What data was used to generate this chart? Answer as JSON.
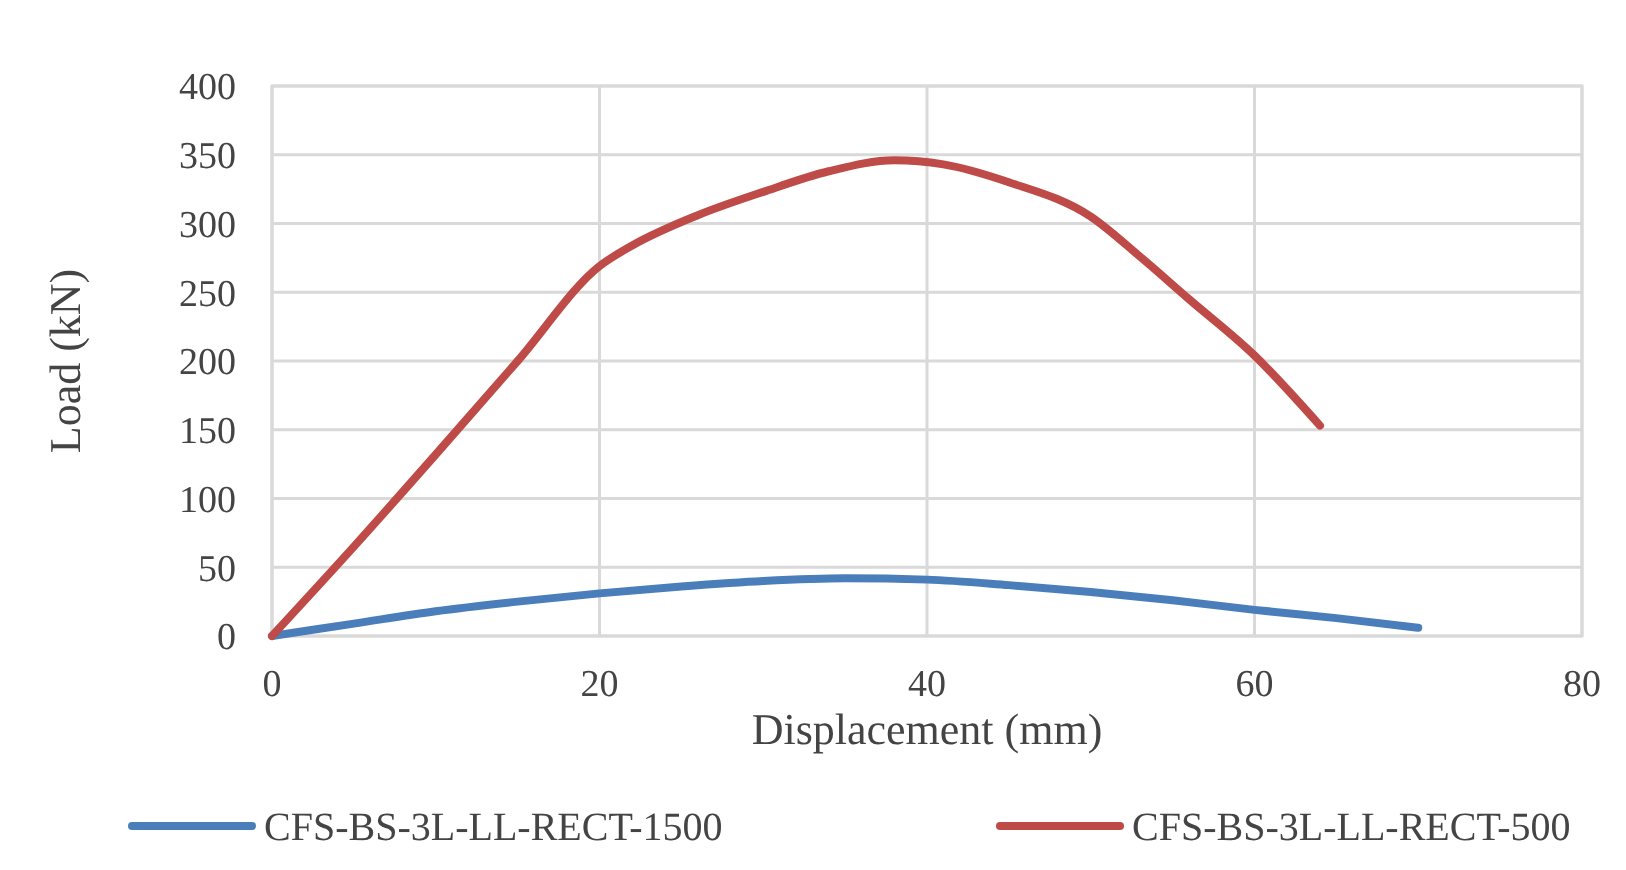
{
  "chart_data": {
    "type": "line",
    "xlabel": "Displacement (mm)",
    "ylabel": "Load (kN)",
    "xlim": [
      0,
      80
    ],
    "xticks": [
      0,
      20,
      40,
      60,
      80
    ],
    "ylim": [
      0,
      400
    ],
    "yticks": [
      0,
      50,
      100,
      150,
      200,
      250,
      300,
      350,
      400
    ],
    "grid": true,
    "legend": "bottom",
    "marker": "none",
    "line_style": "solid",
    "series": [
      {
        "name": "CFS-BS-3L-LL-RECT-1500",
        "color": "#4a7ebb",
        "x": [
          0,
          5,
          10,
          15,
          20,
          25,
          30,
          35,
          40,
          45,
          50,
          55,
          60,
          65,
          70
        ],
        "values": [
          0,
          9,
          18,
          25,
          31,
          36,
          40,
          42,
          41,
          37,
          32,
          26,
          19,
          13,
          6
        ]
      },
      {
        "name": "CFS-BS-3L-LL-RECT-500",
        "color": "#be4b48",
        "x": [
          0,
          5,
          10,
          15,
          20,
          22,
          26,
          30,
          34,
          38,
          41,
          45,
          50,
          53,
          56,
          60,
          64
        ],
        "values": [
          0,
          65,
          132,
          200,
          269,
          284,
          306,
          323,
          338,
          346,
          343,
          330,
          305,
          276,
          245,
          204,
          153
        ]
      }
    ]
  }
}
